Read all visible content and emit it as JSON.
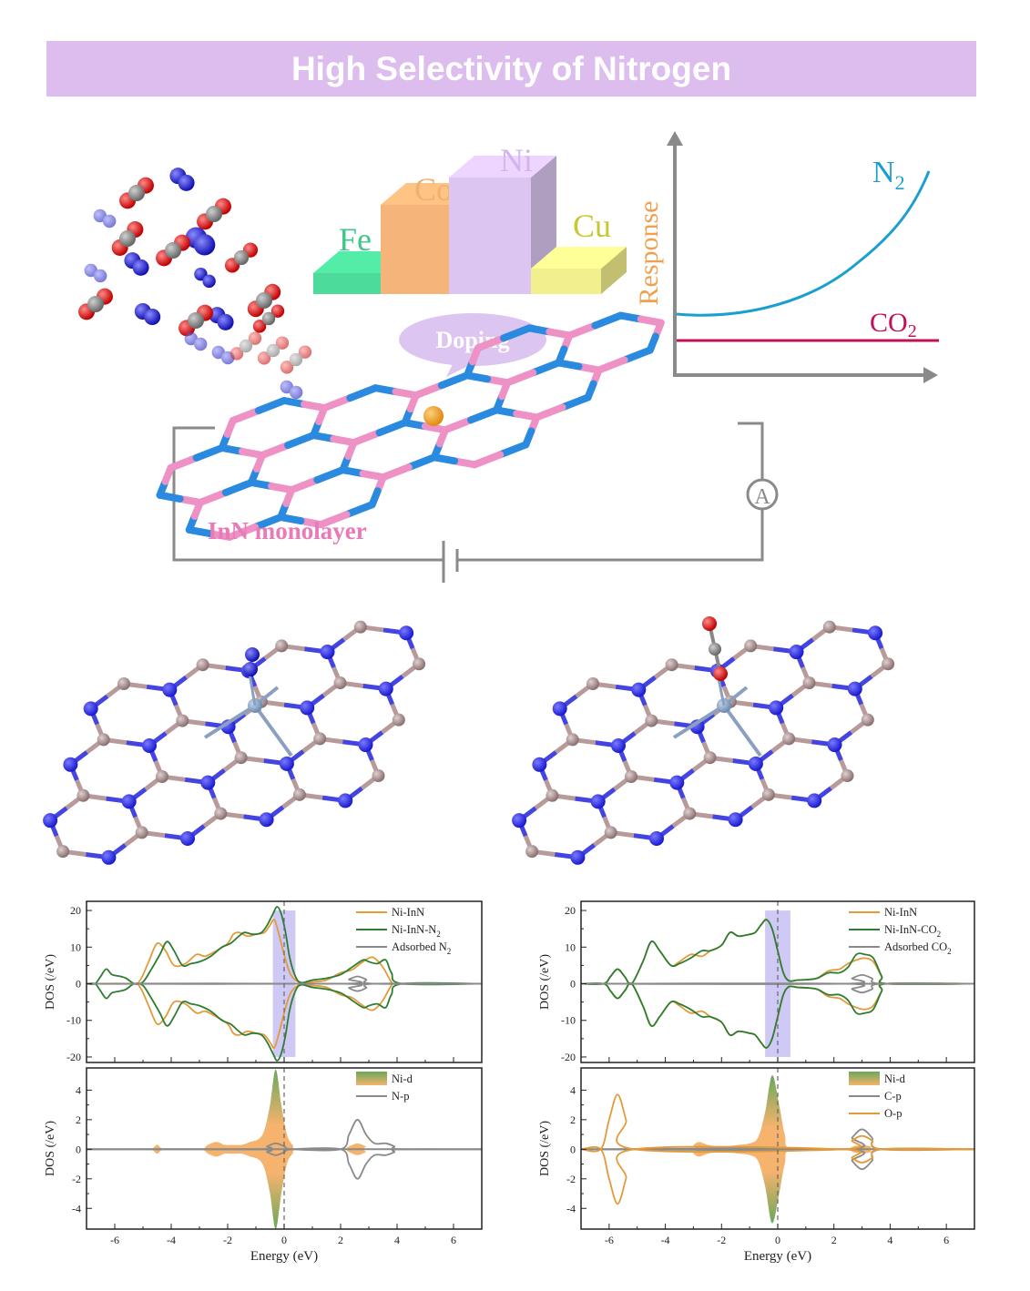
{
  "banner": {
    "title": "High Selectivity of Nitrogen",
    "color": "#dcbdee"
  },
  "dopants": [
    {
      "label": "Fe",
      "color": "#4ddb9b",
      "text_color": "#3cc88a"
    },
    {
      "label": "Co",
      "color": "#f5b57a",
      "text_color": "#f0b070"
    },
    {
      "label": "Ni",
      "color": "#dcc5f0",
      "text_color": "#d4b4ec"
    },
    {
      "label": "Cu",
      "color": "#f2f08c",
      "text_color": "#c8c830"
    }
  ],
  "doping_bubble": {
    "label": "Doping"
  },
  "response_plot": {
    "ylabel": "Response",
    "series": [
      {
        "name": "N",
        "subscript": "2",
        "color": "#1a9fd0"
      },
      {
        "name": "CO",
        "subscript": "2",
        "color": "#c0105a"
      }
    ]
  },
  "monolayer": {
    "label": "InN monolayer",
    "ammeter_label": "A"
  },
  "chart_data": [
    {
      "type": "line",
      "panel": "top-left",
      "xlabel": "",
      "ylabel": "DOS (/eV)",
      "xlim": [
        -7,
        7
      ],
      "ylim": [
        -21.5,
        22.5
      ],
      "yticks": [
        -20,
        -10,
        0,
        10,
        20
      ],
      "spin_polarized": true,
      "highlight_x": [
        -0.4,
        0.4
      ],
      "legend": "top-right",
      "series": [
        {
          "name": "Ni-InN",
          "color": "#e39a3a",
          "x": [
            -7,
            -5.4,
            -5.1,
            -4.8,
            -4.5,
            -4.2,
            -3.9,
            -3.5,
            -3.1,
            -2.8,
            -2.4,
            -2,
            -1.8,
            -1.6,
            -1.3,
            -1,
            -0.7,
            -0.5,
            -0.35,
            -0.2,
            0,
            0.2,
            0.4,
            0.6,
            1,
            1.5,
            2,
            2.4,
            2.7,
            3,
            3.2,
            3.5,
            3.8,
            4,
            7
          ],
          "y": [
            0,
            0,
            1,
            6,
            11,
            9,
            5,
            5.5,
            8,
            7.5,
            9,
            11,
            13.5,
            14,
            13,
            13.5,
            14,
            16,
            17.5,
            14,
            8,
            3,
            1,
            0.3,
            0.5,
            1,
            3,
            3.8,
            5.5,
            7,
            7,
            4.5,
            0.5,
            0,
            0
          ]
        },
        {
          "name": "Ni-InN-N",
          "sub": "2",
          "color": "#2e7d32",
          "x": [
            -7,
            -6.7,
            -6.5,
            -6.3,
            -6.1,
            -5.8,
            -5.6,
            -5.3,
            -5,
            -4.7,
            -4.4,
            -4.15,
            -3.9,
            -3.6,
            -3.3,
            -3,
            -2.6,
            -2.2,
            -1.9,
            -1.6,
            -1.4,
            -1.1,
            -0.8,
            -0.6,
            -0.4,
            -0.25,
            -0.1,
            0.05,
            0.2,
            0.4,
            0.6,
            1,
            1.5,
            2,
            2.4,
            2.8,
            3,
            3.3,
            3.6,
            3.8,
            4.2,
            7
          ],
          "y": [
            0,
            0,
            2,
            4,
            2.5,
            2,
            1.5,
            0,
            0.5,
            4,
            8,
            11.5,
            9,
            5,
            5.5,
            6,
            7.5,
            10,
            11,
            13,
            14,
            13.5,
            14,
            16,
            19,
            21,
            19,
            14,
            7,
            2,
            0.3,
            1,
            1.5,
            2.5,
            4.5,
            6.5,
            6,
            5.5,
            6.5,
            3,
            0,
            0
          ]
        },
        {
          "name": "Adsorbed N",
          "sub": "2",
          "color": "#8a8a8a",
          "x": [
            -7,
            2,
            2.3,
            2.6,
            2.9,
            3.2,
            7
          ],
          "y": [
            0,
            0,
            1.2,
            2,
            1.2,
            0,
            0
          ]
        }
      ]
    },
    {
      "type": "area",
      "panel": "bottom-left",
      "xlabel": "Energy (eV)",
      "ylabel": "DOS (/eV)",
      "xlim": [
        -7,
        7
      ],
      "ylim": [
        -5.4,
        5.5
      ],
      "xticks": [
        -6,
        -4,
        -2,
        0,
        2,
        4,
        6
      ],
      "yticks": [
        -4,
        -2,
        0,
        2,
        4
      ],
      "spin_polarized": true,
      "legend": "top-right",
      "series": [
        {
          "name": "Ni-d",
          "fill": true,
          "color": "#f5b36e",
          "color2": "#6aa85a",
          "x": [
            -7,
            -6.4,
            -6.2,
            -6,
            -4.8,
            -4.5,
            -4.2,
            -3,
            -2.7,
            -2.4,
            -2.1,
            -1.8,
            -1.5,
            -1.2,
            -0.9,
            -0.7,
            -0.5,
            -0.3,
            -0.1,
            0.1,
            0.3,
            0.5,
            2,
            2.3,
            2.6,
            2.9,
            3.2,
            7
          ],
          "y": [
            0,
            0,
            0.05,
            0,
            0,
            0.3,
            0,
            0,
            0.3,
            0.5,
            0.3,
            0.3,
            0.3,
            0.5,
            0.7,
            1.3,
            3,
            5.4,
            3,
            1,
            0.3,
            0,
            0,
            0.2,
            0.4,
            0.2,
            0,
            0
          ]
        },
        {
          "name": "N-p",
          "color": "#8a8a8a",
          "x": [
            -7,
            -1,
            -0.6,
            -0.3,
            0,
            0.3,
            2,
            2.3,
            2.6,
            2.9,
            3.2,
            3.6,
            3.9,
            4.1,
            7
          ],
          "y": [
            0,
            0,
            0.2,
            0.4,
            0.2,
            0,
            0,
            1,
            2,
            1,
            0.4,
            0.4,
            0.2,
            0,
            0
          ]
        }
      ]
    },
    {
      "type": "line",
      "panel": "top-right",
      "xlabel": "",
      "ylabel": "DOS (/eV)",
      "xlim": [
        -7,
        7
      ],
      "ylim": [
        -21.5,
        22.5
      ],
      "yticks": [
        -20,
        -10,
        0,
        10,
        20
      ],
      "spin_polarized": true,
      "highlight_x": [
        -0.45,
        0.45
      ],
      "legend": "top-right",
      "series": [
        {
          "name": "Ni-InN",
          "color": "#e39a3a",
          "x": [
            -7,
            -6.2,
            -5.95,
            -5.7,
            -5.45,
            -5.2,
            -4.8,
            -4.5,
            -4.2,
            -3.8,
            -3.5,
            -3.1,
            -2.7,
            -2.4,
            -2,
            -1.7,
            -1.4,
            -1,
            -0.8,
            -0.6,
            -0.4,
            -0.2,
            0,
            0.2,
            0.4,
            0.7,
            1,
            1.4,
            1.8,
            2.2,
            2.5,
            2.8,
            3.1,
            3.4,
            3.7,
            3.9,
            7
          ],
          "y": [
            0,
            0,
            2,
            4,
            2,
            0,
            6,
            11.5,
            9,
            5,
            6,
            8,
            7.5,
            9,
            10.5,
            14,
            13,
            13.5,
            14,
            16,
            17.5,
            15,
            9,
            3,
            0.8,
            1,
            1.1,
            1.5,
            3.5,
            4,
            5.5,
            6.5,
            7,
            6,
            2,
            0,
            0
          ]
        },
        {
          "name": "Ni-InN-CO",
          "sub": "2",
          "color": "#2e7d32",
          "x": [
            -7,
            -6.2,
            -5.95,
            -5.7,
            -5.45,
            -5.2,
            -4.8,
            -4.5,
            -4.2,
            -3.8,
            -3.5,
            -3.1,
            -2.7,
            -2.4,
            -2,
            -1.7,
            -1.4,
            -1,
            -0.8,
            -0.6,
            -0.4,
            -0.2,
            0,
            0.2,
            0.4,
            0.7,
            1,
            1.4,
            1.8,
            2.2,
            2.5,
            2.8,
            3.1,
            3.4,
            3.7,
            3.9,
            7
          ],
          "y": [
            0,
            0,
            2,
            4,
            2,
            0,
            6,
            11.5,
            9,
            5,
            5.5,
            7,
            9,
            9,
            10.5,
            14,
            13,
            13.5,
            14,
            16,
            17.5,
            15,
            9,
            3,
            0.8,
            1,
            1.1,
            1.5,
            3,
            3,
            4.5,
            8,
            8,
            7,
            2,
            0,
            0
          ]
        },
        {
          "name": "Adsorbed CO",
          "sub": "2",
          "color": "#8a8a8a",
          "x": [
            -7,
            2.3,
            2.65,
            3,
            3.35,
            3.7,
            7
          ],
          "y": [
            0,
            0,
            1.5,
            2.4,
            1.5,
            0,
            0
          ]
        }
      ]
    },
    {
      "type": "area",
      "panel": "bottom-right",
      "xlabel": "Energy (eV)",
      "ylabel": "DOS (/eV)",
      "xlim": [
        -7,
        7
      ],
      "ylim": [
        -5.4,
        5.5
      ],
      "xticks": [
        -6,
        -4,
        -2,
        0,
        2,
        4,
        6
      ],
      "yticks": [
        -4,
        -2,
        0,
        2,
        4
      ],
      "spin_polarized": true,
      "legend": "top-right",
      "series": [
        {
          "name": "Ni-d",
          "fill": true,
          "color": "#f5b36e",
          "color2": "#6aa85a",
          "x": [
            -7,
            -3.3,
            -3,
            -2.8,
            -2.5,
            -2.2,
            -1.8,
            -1.4,
            -1,
            -0.7,
            -0.45,
            -0.2,
            0.05,
            0.25,
            0.5,
            2.3,
            2.7,
            3,
            3.3,
            3.7,
            7
          ],
          "y": [
            0,
            0,
            0.3,
            0.5,
            0.3,
            0.2,
            0.2,
            0.3,
            0.4,
            0.8,
            2.5,
            5,
            3,
            1,
            0,
            0,
            0.2,
            0.3,
            0.2,
            0,
            0
          ]
        },
        {
          "name": "C-p",
          "color": "#8a8a8a",
          "x": [
            -7,
            2.3,
            2.65,
            3,
            3.35,
            3.7,
            7
          ],
          "y": [
            0,
            0,
            0.8,
            1.35,
            0.8,
            0,
            0
          ]
        },
        {
          "name": "O-p",
          "color": "#e39a3a",
          "x": [
            -7,
            -6.3,
            -6,
            -5.7,
            -5.4,
            -5.1,
            2.3,
            2.65,
            3,
            3.35,
            3.7,
            7
          ],
          "y": [
            0,
            0,
            2,
            3.7,
            2,
            0,
            0,
            0.6,
            0.9,
            0.6,
            0,
            0
          ]
        }
      ]
    }
  ]
}
